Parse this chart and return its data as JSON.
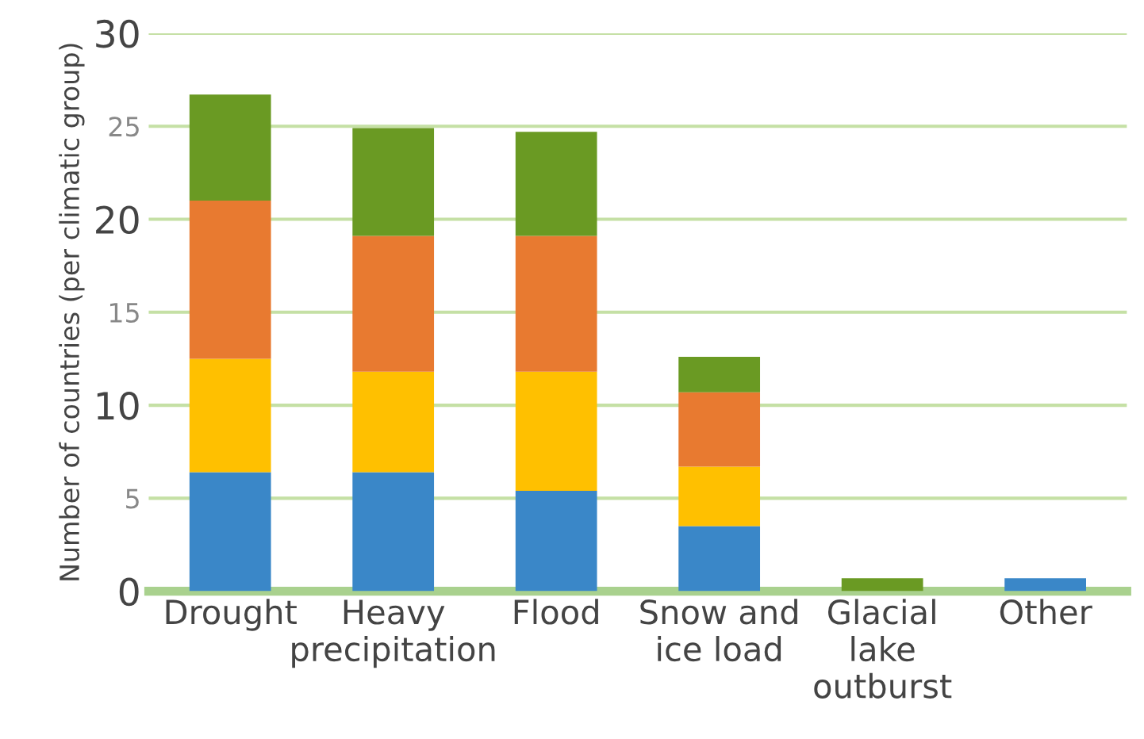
{
  "chart_data": {
    "type": "bar",
    "stacked": true,
    "ylabel": "Number of countries (per climatic group)",
    "categories": [
      "Drought",
      "Heavy\nprecipitation",
      "Flood",
      "Snow and\nice load",
      "Glacial\nlake\noutburst",
      "Other"
    ],
    "series": [
      {
        "color": "#3a87c8",
        "values": [
          6.4,
          6.4,
          5.4,
          3.5,
          null,
          0.7
        ]
      },
      {
        "color": "#ffc000",
        "values": [
          6.1,
          5.4,
          6.4,
          3.2,
          null,
          null
        ]
      },
      {
        "color": "#e87a30",
        "values": [
          8.5,
          7.3,
          7.3,
          4.0,
          null,
          null
        ]
      },
      {
        "color": "#6a9a23",
        "values": [
          5.7,
          5.8,
          5.6,
          1.9,
          0.7,
          null
        ]
      }
    ],
    "ylim": [
      0,
      30
    ],
    "yticks": [
      0,
      5,
      10,
      15,
      20,
      25,
      30
    ],
    "grid": "y",
    "legend": false
  }
}
